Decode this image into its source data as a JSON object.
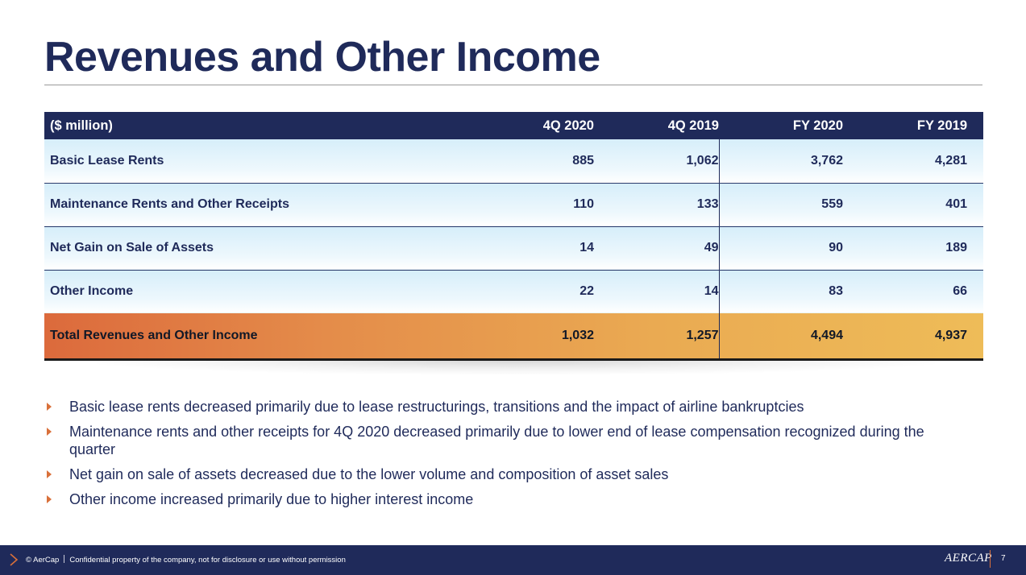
{
  "slide": {
    "title": "Revenues and Other Income",
    "page_number": "7"
  },
  "table": {
    "header": [
      "($ million)",
      "4Q 2020",
      "4Q 2019",
      "FY 2020",
      "FY 2019"
    ],
    "rows": [
      {
        "label": "Basic Lease Rents",
        "values": [
          "885",
          "1,062",
          "3,762",
          "4,281"
        ]
      },
      {
        "label": "Maintenance Rents and Other Receipts",
        "values": [
          "110",
          "133",
          "559",
          "401"
        ]
      },
      {
        "label": "Net Gain on Sale of Assets",
        "values": [
          "14",
          "49",
          "90",
          "189"
        ]
      },
      {
        "label": "Other Income",
        "values": [
          "22",
          "14",
          "83",
          "66"
        ]
      }
    ],
    "total": {
      "label": "Total Revenues and Other Income",
      "values": [
        "1,032",
        "1,257",
        "4,494",
        "4,937"
      ]
    }
  },
  "bullets": [
    "Basic lease rents decreased primarily due to lease restructurings, transitions and the impact of airline bankruptcies",
    "Maintenance rents and other receipts for 4Q 2020 decreased primarily due to lower end of lease compensation recognized during the quarter",
    "Net gain on sale of assets decreased due to the lower volume and composition of asset sales",
    "Other income increased primarily due to higher interest income"
  ],
  "footer": {
    "copyright": "© AerCap",
    "confidential": "Confidential property of the company, not for disclosure or use without permission",
    "logo": "AERCAP"
  },
  "colors": {
    "navy": "#1f2a5a",
    "accent_orange": "#d9703a",
    "row_tint": "#d6eefa",
    "total_gradient_start": "#dc6a3c",
    "total_gradient_end": "#eebc58"
  },
  "icons": {
    "bullet": "triangle-right-icon",
    "footer_mark": "chevron-right-icon"
  }
}
